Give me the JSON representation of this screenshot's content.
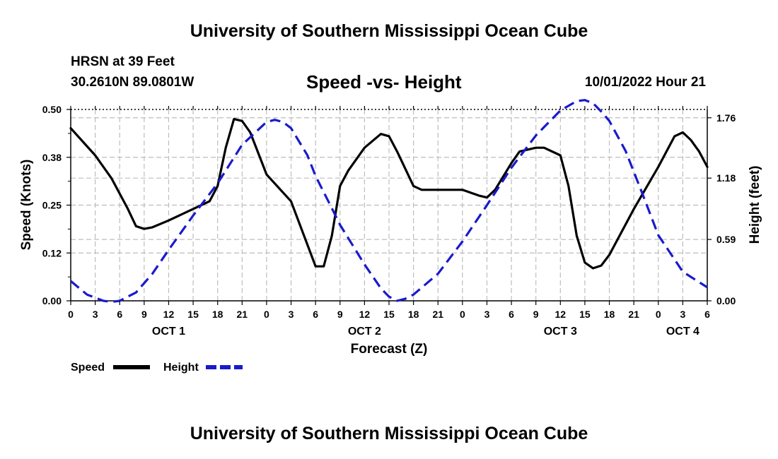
{
  "header": {
    "title": "University of Southern Mississippi Ocean Cube",
    "station": "HRSN at 39 Feet",
    "coords": "30.2610N  89.0801W",
    "subtitle": "Speed -vs- Height",
    "datetime": "10/01/2022 Hour 21"
  },
  "footer": {
    "title": "University of Southern Mississippi Ocean Cube"
  },
  "chart_data": {
    "type": "line",
    "xlabel": "Forecast (Z)",
    "ylabel": "Speed (Knots)",
    "y2label": "Height (feet)",
    "xlim": [
      0,
      78
    ],
    "ylim": [
      0,
      0.5
    ],
    "y2lim": [
      0,
      1.84
    ],
    "x_ticks": [
      0,
      3,
      6,
      9,
      12,
      15,
      18,
      21,
      24,
      27,
      30,
      33,
      36,
      39,
      42,
      45,
      48,
      51,
      54,
      57,
      60,
      63,
      66,
      69,
      72,
      75,
      78
    ],
    "x_tick_labels": [
      "0",
      "3",
      "6",
      "9",
      "12",
      "15",
      "18",
      "21",
      "0",
      "3",
      "6",
      "9",
      "12",
      "15",
      "18",
      "21",
      "0",
      "3",
      "6",
      "9",
      "12",
      "15",
      "18",
      "21",
      "0",
      "3",
      "6"
    ],
    "day_labels": [
      {
        "x": 12,
        "label": "OCT 1"
      },
      {
        "x": 36,
        "label": "OCT 2"
      },
      {
        "x": 60,
        "label": "OCT 3"
      },
      {
        "x": 75,
        "label": "OCT 4"
      }
    ],
    "y_ticks": [
      0,
      0.125,
      0.25,
      0.375,
      0.5
    ],
    "y_tick_labels": [
      "0.00",
      "0.12",
      "0.25",
      "0.38",
      "0.50"
    ],
    "y2_ticks": [
      0,
      0.59,
      1.18,
      1.76
    ],
    "y2_tick_labels": [
      "0.00",
      "0.59",
      "1.18",
      "1.76"
    ],
    "grid": true,
    "legend_position": "bottom-left",
    "series": [
      {
        "name": "Speed",
        "color": "#000000",
        "dash": "solid",
        "axis": "left",
        "x": [
          0,
          3,
          5,
          7,
          8,
          9,
          10,
          12,
          15,
          17,
          18,
          19,
          20,
          21,
          22,
          24,
          27,
          30,
          31,
          32,
          33,
          34,
          36,
          38,
          39,
          40,
          42,
          43,
          45,
          48,
          50,
          51,
          52,
          54,
          55,
          57,
          58,
          60,
          61,
          62,
          63,
          64,
          65,
          66,
          67,
          69,
          72,
          74,
          75,
          76,
          77,
          78
        ],
        "values": [
          0.451,
          0.38,
          0.32,
          0.24,
          0.195,
          0.188,
          0.192,
          0.21,
          0.24,
          0.26,
          0.3,
          0.4,
          0.475,
          0.47,
          0.44,
          0.33,
          0.26,
          0.09,
          0.09,
          0.17,
          0.3,
          0.34,
          0.4,
          0.436,
          0.43,
          0.39,
          0.3,
          0.29,
          0.29,
          0.29,
          0.275,
          0.27,
          0.29,
          0.36,
          0.39,
          0.4,
          0.4,
          0.38,
          0.3,
          0.17,
          0.1,
          0.085,
          0.092,
          0.12,
          0.16,
          0.24,
          0.35,
          0.43,
          0.44,
          0.42,
          0.39,
          0.35
        ]
      },
      {
        "name": "Height",
        "color": "#1a1acc",
        "dash": "dashed",
        "axis": "right",
        "x": [
          0,
          2,
          4,
          5,
          6,
          8,
          10,
          12,
          15,
          18,
          21,
          24,
          25,
          26,
          27,
          29,
          30,
          32,
          33,
          36,
          38,
          39,
          40,
          41,
          42,
          45,
          48,
          51,
          54,
          57,
          60,
          62,
          63,
          64,
          65,
          66,
          68,
          70,
          72,
          75,
          78
        ],
        "values": [
          0.19,
          0.06,
          0.0,
          -0.01,
          0.0,
          0.08,
          0.26,
          0.49,
          0.82,
          1.13,
          1.5,
          1.72,
          1.74,
          1.72,
          1.66,
          1.4,
          1.2,
          0.89,
          0.73,
          0.35,
          0.12,
          0.04,
          0.0,
          0.02,
          0.06,
          0.26,
          0.57,
          0.92,
          1.28,
          1.59,
          1.83,
          1.92,
          1.93,
          1.9,
          1.82,
          1.73,
          1.44,
          1.04,
          0.63,
          0.28,
          0.13
        ]
      }
    ]
  },
  "legend": {
    "speed_label": "Speed",
    "height_label": "Height"
  }
}
